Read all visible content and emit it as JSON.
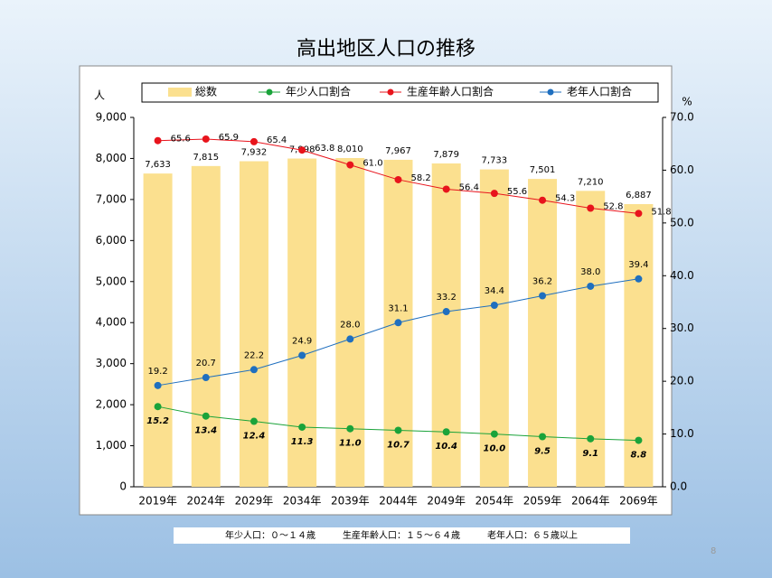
{
  "chart_data": {
    "type": "combo",
    "title": "高出地区人口の推移",
    "y_label": "人",
    "y2_label": "%",
    "categories": [
      "2019年",
      "2024年",
      "2029年",
      "2034年",
      "2039年",
      "2044年",
      "2049年",
      "2054年",
      "2059年",
      "2064年",
      "2069年"
    ],
    "series": [
      {
        "name": "総数",
        "type": "bar",
        "axis": "y",
        "color": "#fbe08f",
        "values": [
          7633,
          7815,
          7932,
          7998,
          8010,
          7967,
          7879,
          7733,
          7501,
          7210,
          6887
        ],
        "value_labels": [
          "7,633",
          "7,815",
          "7,932",
          "7,998",
          "8,010",
          "7,967",
          "7,879",
          "7,733",
          "7,501",
          "7,210",
          "6,887"
        ]
      },
      {
        "name": "年少人口割合",
        "type": "line",
        "axis": "y2",
        "color": "#1aa33a",
        "values": [
          15.2,
          13.4,
          12.4,
          11.3,
          11.0,
          10.7,
          10.4,
          10.0,
          9.5,
          9.1,
          8.8
        ],
        "value_labels": [
          "15.2",
          "13.4",
          "12.4",
          "11.3",
          "11.0",
          "10.7",
          "10.4",
          "10.0",
          "9.5",
          "9.1",
          "8.8"
        ]
      },
      {
        "name": "生産年齢人口割合",
        "type": "line",
        "axis": "y2",
        "color": "#e8141c",
        "values": [
          65.6,
          65.9,
          65.4,
          63.8,
          61.0,
          58.2,
          56.4,
          55.6,
          54.3,
          52.8,
          51.8
        ],
        "value_labels": [
          "65.6",
          "65.9",
          "65.4",
          "63.8",
          "61.0",
          "58.2",
          "56.4",
          "55.6",
          "54.3",
          "52.8",
          "51.8"
        ]
      },
      {
        "name": "老年人口割合",
        "type": "line",
        "axis": "y2",
        "color": "#1f6fbf",
        "values": [
          19.2,
          20.7,
          22.2,
          24.9,
          28.0,
          31.1,
          33.2,
          34.4,
          36.2,
          38.0,
          39.4
        ],
        "value_labels": [
          "19.2",
          "20.7",
          "22.2",
          "24.9",
          "28.0",
          "31.1",
          "33.2",
          "34.4",
          "36.2",
          "38.0",
          "39.4"
        ]
      }
    ],
    "ylim": [
      0,
      9000
    ],
    "yticks": [
      0,
      {
        "value": 1000,
        "label": "1,000"
      },
      {
        "value": 2000,
        "label": "2,000"
      },
      {
        "value": 3000,
        "label": "3,000"
      },
      {
        "value": 4000,
        "label": "4,000"
      },
      {
        "value": 5000,
        "label": "5,000"
      },
      {
        "value": 6000,
        "label": "6,000"
      },
      {
        "value": 7000,
        "label": "7,000"
      },
      {
        "value": 8000,
        "label": "8,000"
      },
      {
        "value": 9000,
        "label": "9,000"
      }
    ],
    "y2lim": [
      0,
      70
    ],
    "y2ticks": [
      {
        "value": 0,
        "label": "0.0"
      },
      {
        "value": 10,
        "label": "10.0"
      },
      {
        "value": 20,
        "label": "20.0"
      },
      {
        "value": 30,
        "label": "30.0"
      },
      {
        "value": 40,
        "label": "40.0"
      },
      {
        "value": 50,
        "label": "50.0"
      },
      {
        "value": 60,
        "label": "60.0"
      },
      {
        "value": 70,
        "label": "70.0"
      }
    ],
    "footnote": "年少人口：０～１４歳　　　生産年齢人口：１５～６４歳　　　老年人口：６５歳以上",
    "page_number": "8"
  }
}
